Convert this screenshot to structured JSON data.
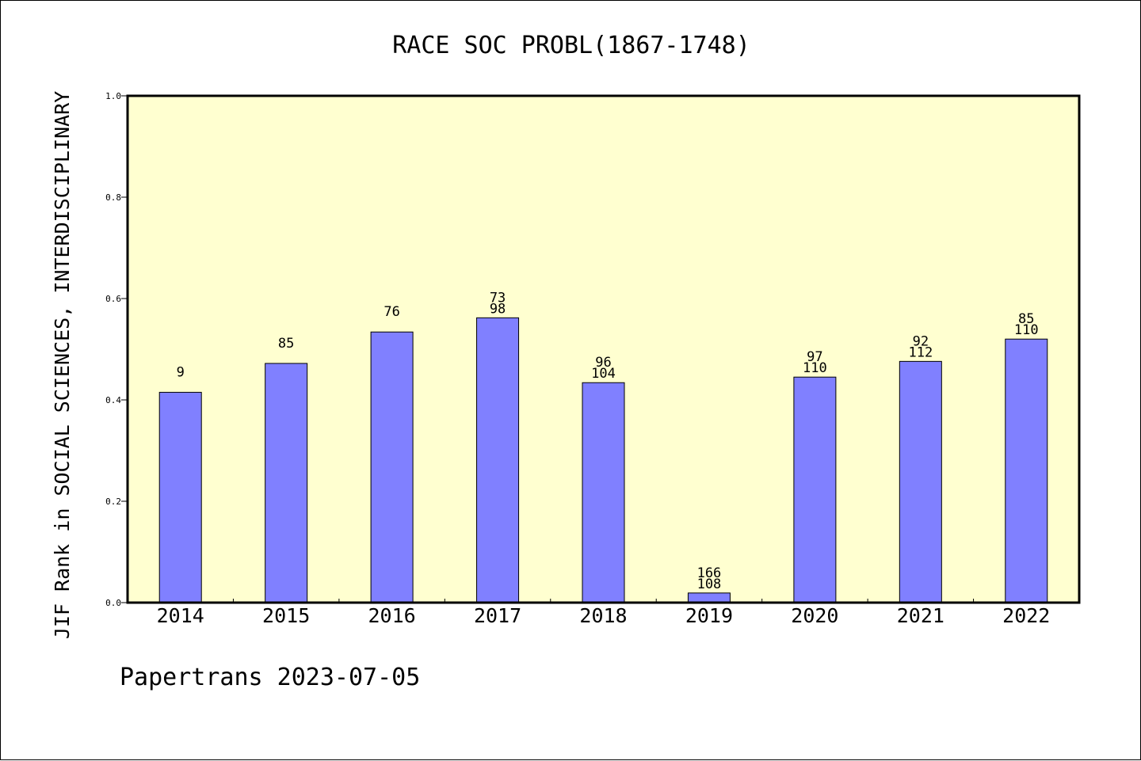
{
  "chart_data": {
    "type": "bar",
    "title": "RACE SOC PROBL(1867-1748)",
    "ylabel": "JIF Rank in SOCIAL SCIENCES, INTERDISCIPLINARY",
    "xlabel": "",
    "ylim": [
      0,
      1.0
    ],
    "yticks": [
      "0.0",
      "0.2",
      "0.4",
      "0.6",
      "0.8",
      "1.0"
    ],
    "categories": [
      "2014",
      "2015",
      "2016",
      "2017",
      "2018",
      "2019",
      "2020",
      "2021",
      "2022"
    ],
    "values": [
      0.415,
      0.472,
      0.534,
      0.562,
      0.434,
      0.019,
      0.445,
      0.476,
      0.52
    ],
    "labels": [
      [
        "9"
      ],
      [
        "85"
      ],
      [
        "76"
      ],
      [
        "73",
        "98"
      ],
      [
        "96",
        "104"
      ],
      [
        "166",
        "108"
      ],
      [
        "97",
        "110"
      ],
      [
        "92",
        "112"
      ],
      [
        "85",
        "110"
      ]
    ],
    "grid": false,
    "colors": {
      "bar": "#8080ff",
      "plot_bg": "#ffffd0"
    }
  },
  "footer": {
    "text": "Papertrans 2023-07-05"
  }
}
